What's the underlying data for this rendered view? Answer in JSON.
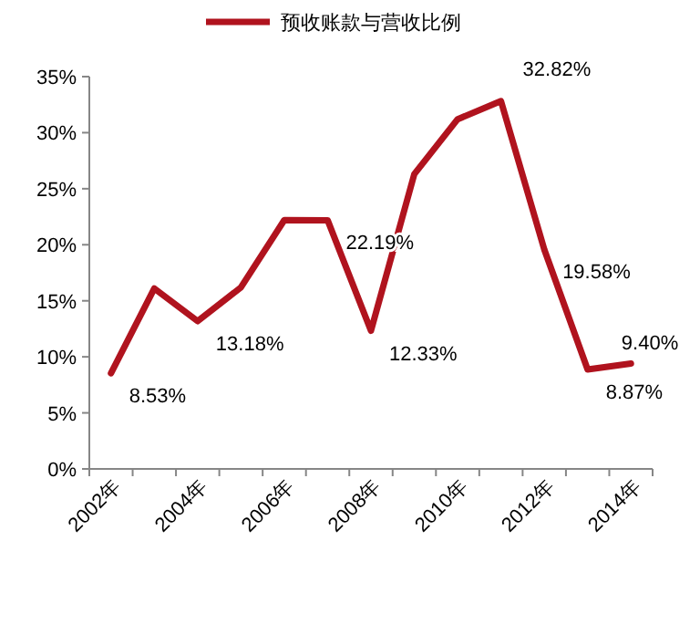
{
  "chart_data": {
    "type": "line",
    "categories": [
      "2002年",
      null,
      "2004年",
      null,
      "2006年",
      null,
      "2008年",
      null,
      "2010年",
      null,
      "2012年",
      null,
      "2014年"
    ],
    "series": [
      {
        "name": "预收账款与营收比例",
        "color": "#b0131e",
        "values": [
          8.53,
          16.1,
          13.18,
          16.2,
          22.2,
          22.19,
          12.33,
          26.3,
          31.2,
          32.82,
          19.58,
          8.87,
          9.4
        ],
        "value_labels": [
          "8.53%",
          null,
          "13.18%",
          null,
          null,
          "22.19%",
          "12.33%",
          null,
          null,
          "32.82%",
          "19.58%",
          "8.87%",
          "9.40%"
        ]
      }
    ],
    "ylim": [
      0,
      35
    ],
    "yticks": [
      {
        "value": 0,
        "label": "0%"
      },
      {
        "value": 5,
        "label": "5%"
      },
      {
        "value": 10,
        "label": "10%"
      },
      {
        "value": 15,
        "label": "15%"
      },
      {
        "value": 20,
        "label": "20%"
      },
      {
        "value": 25,
        "label": "25%"
      },
      {
        "value": 30,
        "label": "30%"
      },
      {
        "value": 35,
        "label": "35%"
      }
    ],
    "legend": "top",
    "marker": "none",
    "line_style": "solid"
  }
}
